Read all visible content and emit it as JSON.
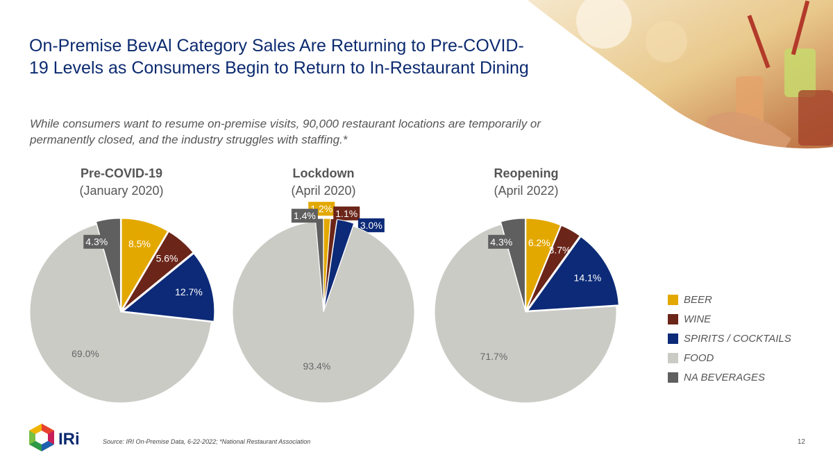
{
  "title": "On-Premise BevAl Category Sales Are Returning to Pre-COVID-19 Levels as Consumers Begin to Return to In-Restaurant Dining",
  "subtitle": "While consumers want to resume on-premise visits, 90,000 restaurant locations are temporarily or permanently closed, and the industry struggles with staffing.*",
  "source": "Source: IRI On-Premise Data, 6-22-2022; *National Restaurant Association",
  "page_number": "12",
  "logo_text": "IRi",
  "colors": {
    "title": "#0b2a6f",
    "BEER": "#e3a800",
    "WINE": "#6b2519",
    "SPIRITS / COCKTAILS": "#0c2a77",
    "FOOD": "#cbcbc6",
    "NA BEVERAGES": "#5f5f5f"
  },
  "legend": [
    "BEER",
    "WINE",
    "SPIRITS / COCKTAILS",
    "FOOD",
    "NA BEVERAGES"
  ],
  "chart_data": [
    {
      "type": "pie",
      "title": "Pre-COVID-19",
      "subtitle": "(January 2020)",
      "categories": [
        "BEER",
        "WINE",
        "SPIRITS / COCKTAILS",
        "FOOD",
        "NA BEVERAGES"
      ],
      "values": [
        8.5,
        5.6,
        12.7,
        69.0,
        4.3
      ],
      "labels": [
        "8.5%",
        "5.6%",
        "12.7%",
        "69.0%",
        "4.3%"
      ]
    },
    {
      "type": "pie",
      "title": "Lockdown",
      "subtitle": "(April 2020)",
      "categories": [
        "BEER",
        "WINE",
        "SPIRITS / COCKTAILS",
        "FOOD",
        "NA BEVERAGES"
      ],
      "values": [
        1.2,
        1.1,
        3.0,
        93.4,
        1.4
      ],
      "labels": [
        "1.2%",
        "1.1%",
        "3.0%",
        "93.4%",
        "1.4%"
      ]
    },
    {
      "type": "pie",
      "title": "Reopening",
      "subtitle": "(April 2022)",
      "categories": [
        "BEER",
        "WINE",
        "SPIRITS / COCKTAILS",
        "FOOD",
        "NA BEVERAGES"
      ],
      "values": [
        6.2,
        3.7,
        14.1,
        71.7,
        4.3
      ],
      "labels": [
        "6.2%",
        "3.7%",
        "14.1%",
        "71.7%",
        "4.3%"
      ]
    }
  ]
}
